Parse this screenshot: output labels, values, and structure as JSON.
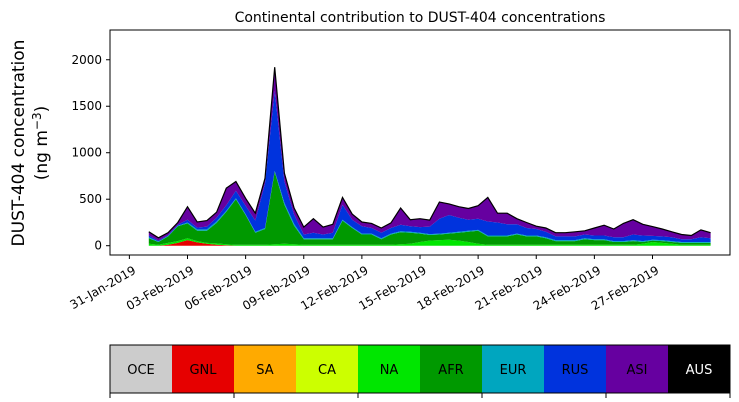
{
  "chart_data": {
    "type": "area",
    "title": "Continental contribution to DUST-404 concentrations",
    "ylabel_line1": "DUST-404 concentration",
    "ylabel_line2_prefix": "(ng m",
    "ylabel_line2_sup": "−3",
    "ylabel_line2_suffix": ")",
    "xlabel": "",
    "x_start": "2019-01-30",
    "x_end": "2019-03-03",
    "ylim": [
      -100,
      2320
    ],
    "yticks": [
      0,
      500,
      1000,
      1500,
      2000
    ],
    "xticks": [
      "31-Jan-2019",
      "03-Feb-2019",
      "06-Feb-2019",
      "09-Feb-2019",
      "12-Feb-2019",
      "15-Feb-2019",
      "18-Feb-2019",
      "21-Feb-2019",
      "24-Feb-2019",
      "27-Feb-2019"
    ],
    "xtick_dates": [
      "2019-01-31",
      "2019-02-03",
      "2019-02-06",
      "2019-02-09",
      "2019-02-12",
      "2019-02-15",
      "2019-02-18",
      "2019-02-21",
      "2019-02-24",
      "2019-02-27"
    ],
    "x": [
      "2019-02-01",
      "2019-02-01 12:00",
      "2019-02-02",
      "2019-02-02 12:00",
      "2019-02-03",
      "2019-02-03 12:00",
      "2019-02-04",
      "2019-02-04 12:00",
      "2019-02-05",
      "2019-02-05 12:00",
      "2019-02-06",
      "2019-02-06 12:00",
      "2019-02-07",
      "2019-02-07 12:00",
      "2019-02-08",
      "2019-02-08 12:00",
      "2019-02-09",
      "2019-02-09 12:00",
      "2019-02-10",
      "2019-02-10 12:00",
      "2019-02-11",
      "2019-02-11 12:00",
      "2019-02-12",
      "2019-02-12 12:00",
      "2019-02-13",
      "2019-02-13 12:00",
      "2019-02-14",
      "2019-02-14 12:00",
      "2019-02-15",
      "2019-02-15 12:00",
      "2019-02-16",
      "2019-02-16 12:00",
      "2019-02-17",
      "2019-02-17 12:00",
      "2019-02-18",
      "2019-02-18 12:00",
      "2019-02-19",
      "2019-02-19 12:00",
      "2019-02-20",
      "2019-02-20 12:00",
      "2019-02-21",
      "2019-02-21 12:00",
      "2019-02-22",
      "2019-02-22 12:00",
      "2019-02-23",
      "2019-02-23 12:00",
      "2019-02-24",
      "2019-02-24 12:00",
      "2019-02-25",
      "2019-02-25 12:00",
      "2019-02-26",
      "2019-02-26 12:00",
      "2019-02-27",
      "2019-02-27 12:00",
      "2019-02-28",
      "2019-02-28 12:00",
      "2019-03-01",
      "2019-03-01 12:00",
      "2019-03-02"
    ],
    "series": [
      {
        "name": "OCE",
        "color": "#cccccc",
        "values": [
          0,
          0,
          0,
          0,
          0,
          0,
          0,
          0,
          0,
          0,
          0,
          0,
          0,
          0,
          0,
          0,
          0,
          0,
          0,
          0,
          0,
          0,
          0,
          0,
          0,
          0,
          0,
          0,
          0,
          0,
          0,
          0,
          0,
          0,
          0,
          0,
          0,
          0,
          0,
          0,
          0,
          0,
          0,
          0,
          0,
          0,
          0,
          0,
          0,
          0,
          0,
          0,
          0,
          0,
          0,
          0,
          0,
          0,
          0
        ]
      },
      {
        "name": "GNL",
        "color": "#e60000",
        "values": [
          0,
          0,
          10,
          30,
          60,
          35,
          20,
          10,
          5,
          0,
          0,
          0,
          0,
          0,
          0,
          0,
          0,
          0,
          0,
          0,
          0,
          0,
          0,
          0,
          0,
          0,
          0,
          0,
          0,
          0,
          0,
          0,
          0,
          0,
          0,
          0,
          0,
          0,
          0,
          0,
          0,
          0,
          0,
          0,
          0,
          0,
          0,
          0,
          0,
          0,
          0,
          0,
          0,
          0,
          0,
          0,
          0,
          0,
          0
        ]
      },
      {
        "name": "SA",
        "color": "#ffaa00",
        "values": [
          0,
          0,
          0,
          0,
          0,
          0,
          0,
          0,
          0,
          0,
          0,
          0,
          0,
          0,
          0,
          0,
          0,
          0,
          0,
          0,
          0,
          0,
          0,
          0,
          0,
          0,
          0,
          0,
          0,
          0,
          0,
          0,
          0,
          0,
          0,
          0,
          0,
          0,
          0,
          0,
          0,
          0,
          0,
          0,
          0,
          0,
          0,
          0,
          0,
          0,
          0,
          0,
          0,
          0,
          0,
          0,
          0,
          0,
          0
        ]
      },
      {
        "name": "CA",
        "color": "#ccff00",
        "values": [
          0,
          0,
          0,
          0,
          0,
          0,
          0,
          0,
          0,
          0,
          0,
          0,
          0,
          0,
          0,
          0,
          0,
          0,
          0,
          0,
          0,
          0,
          0,
          0,
          0,
          0,
          0,
          0,
          0,
          0,
          0,
          0,
          0,
          0,
          0,
          0,
          0,
          0,
          0,
          0,
          0,
          0,
          0,
          0,
          0,
          0,
          0,
          0,
          0,
          0,
          0,
          0,
          0,
          0,
          0,
          0,
          0,
          0,
          0
        ]
      },
      {
        "name": "NA",
        "color": "#00e600",
        "values": [
          20,
          10,
          20,
          20,
          20,
          15,
          10,
          15,
          10,
          10,
          10,
          10,
          10,
          15,
          20,
          15,
          10,
          10,
          10,
          10,
          10,
          10,
          10,
          10,
          10,
          10,
          15,
          20,
          40,
          55,
          60,
          65,
          55,
          40,
          20,
          10,
          10,
          10,
          10,
          10,
          10,
          10,
          10,
          10,
          10,
          10,
          10,
          10,
          10,
          10,
          10,
          20,
          40,
          30,
          20,
          10,
          10,
          10,
          10
        ]
      },
      {
        "name": "AFR",
        "color": "#009900",
        "values": [
          60,
          30,
          70,
          160,
          160,
          110,
          130,
          220,
          350,
          490,
          320,
          130,
          170,
          780,
          420,
          200,
          60,
          60,
          60,
          60,
          260,
          180,
          110,
          110,
          60,
          110,
          130,
          120,
          90,
          60,
          60,
          65,
          85,
          110,
          140,
          90,
          90,
          90,
          110,
          90,
          90,
          70,
          40,
          40,
          40,
          60,
          50,
          50,
          30,
          30,
          40,
          20,
          15,
          20,
          20,
          20,
          20,
          20,
          20
        ]
      },
      {
        "name": "EUR",
        "color": "#00a6bf",
        "values": [
          10,
          5,
          5,
          5,
          10,
          15,
          15,
          15,
          10,
          10,
          10,
          10,
          10,
          10,
          20,
          20,
          10,
          10,
          10,
          10,
          10,
          10,
          10,
          10,
          10,
          10,
          10,
          10,
          10,
          10,
          10,
          10,
          10,
          10,
          10,
          10,
          10,
          10,
          10,
          10,
          10,
          10,
          10,
          10,
          10,
          10,
          10,
          10,
          10,
          10,
          10,
          10,
          10,
          10,
          10,
          10,
          10,
          10,
          10
        ]
      },
      {
        "name": "RUS",
        "color": "#0033dd",
        "values": [
          20,
          10,
          10,
          10,
          30,
          20,
          30,
          40,
          60,
          80,
          90,
          120,
          480,
          860,
          230,
          100,
          40,
          60,
          40,
          60,
          160,
          80,
          80,
          60,
          60,
          60,
          70,
          60,
          60,
          80,
          160,
          190,
          150,
          120,
          120,
          150,
          140,
          120,
          100,
          80,
          70,
          60,
          40,
          40,
          40,
          40,
          40,
          40,
          40,
          40,
          60,
          60,
          40,
          40,
          40,
          30,
          30,
          50,
          40
        ]
      },
      {
        "name": "ASI",
        "color": "#6600a0",
        "values": [
          40,
          30,
          25,
          25,
          140,
          60,
          65,
          60,
          185,
          100,
          80,
          80,
          55,
          255,
          90,
          70,
          80,
          150,
          80,
          90,
          80,
          60,
          45,
          50,
          50,
          55,
          180,
          70,
          90,
          70,
          180,
          120,
          120,
          120,
          140,
          260,
          100,
          120,
          60,
          60,
          30,
          40,
          40,
          40,
          50,
          40,
          80,
          110,
          90,
          150,
          160,
          120,
          100,
          80,
          60,
          50,
          40,
          80,
          60
        ]
      },
      {
        "name": "AUS",
        "color": "#000000",
        "values": [
          0,
          0,
          0,
          0,
          0,
          0,
          0,
          0,
          0,
          0,
          0,
          0,
          0,
          0,
          0,
          0,
          0,
          0,
          0,
          0,
          0,
          0,
          0,
          0,
          0,
          0,
          0,
          0,
          0,
          0,
          0,
          0,
          0,
          0,
          0,
          0,
          0,
          0,
          0,
          0,
          0,
          0,
          0,
          0,
          0,
          0,
          0,
          0,
          0,
          0,
          0,
          0,
          0,
          0,
          0,
          0,
          0,
          0,
          0
        ]
      }
    ],
    "legend": [
      {
        "name": "OCE",
        "color": "#cccccc",
        "text_color": "#000000"
      },
      {
        "name": "GNL",
        "color": "#e60000",
        "text_color": "#000000"
      },
      {
        "name": "SA",
        "color": "#ffaa00",
        "text_color": "#000000"
      },
      {
        "name": "CA",
        "color": "#ccff00",
        "text_color": "#000000"
      },
      {
        "name": "NA",
        "color": "#00e600",
        "text_color": "#000000"
      },
      {
        "name": "AFR",
        "color": "#009900",
        "text_color": "#000000"
      },
      {
        "name": "EUR",
        "color": "#00a6bf",
        "text_color": "#000000"
      },
      {
        "name": "RUS",
        "color": "#0033dd",
        "text_color": "#000000"
      },
      {
        "name": "ASI",
        "color": "#6600a0",
        "text_color": "#000000"
      },
      {
        "name": "AUS",
        "color": "#000000",
        "text_color": "#ffffff"
      }
    ],
    "grid": false,
    "legend_placement": "bottom colorbar"
  }
}
